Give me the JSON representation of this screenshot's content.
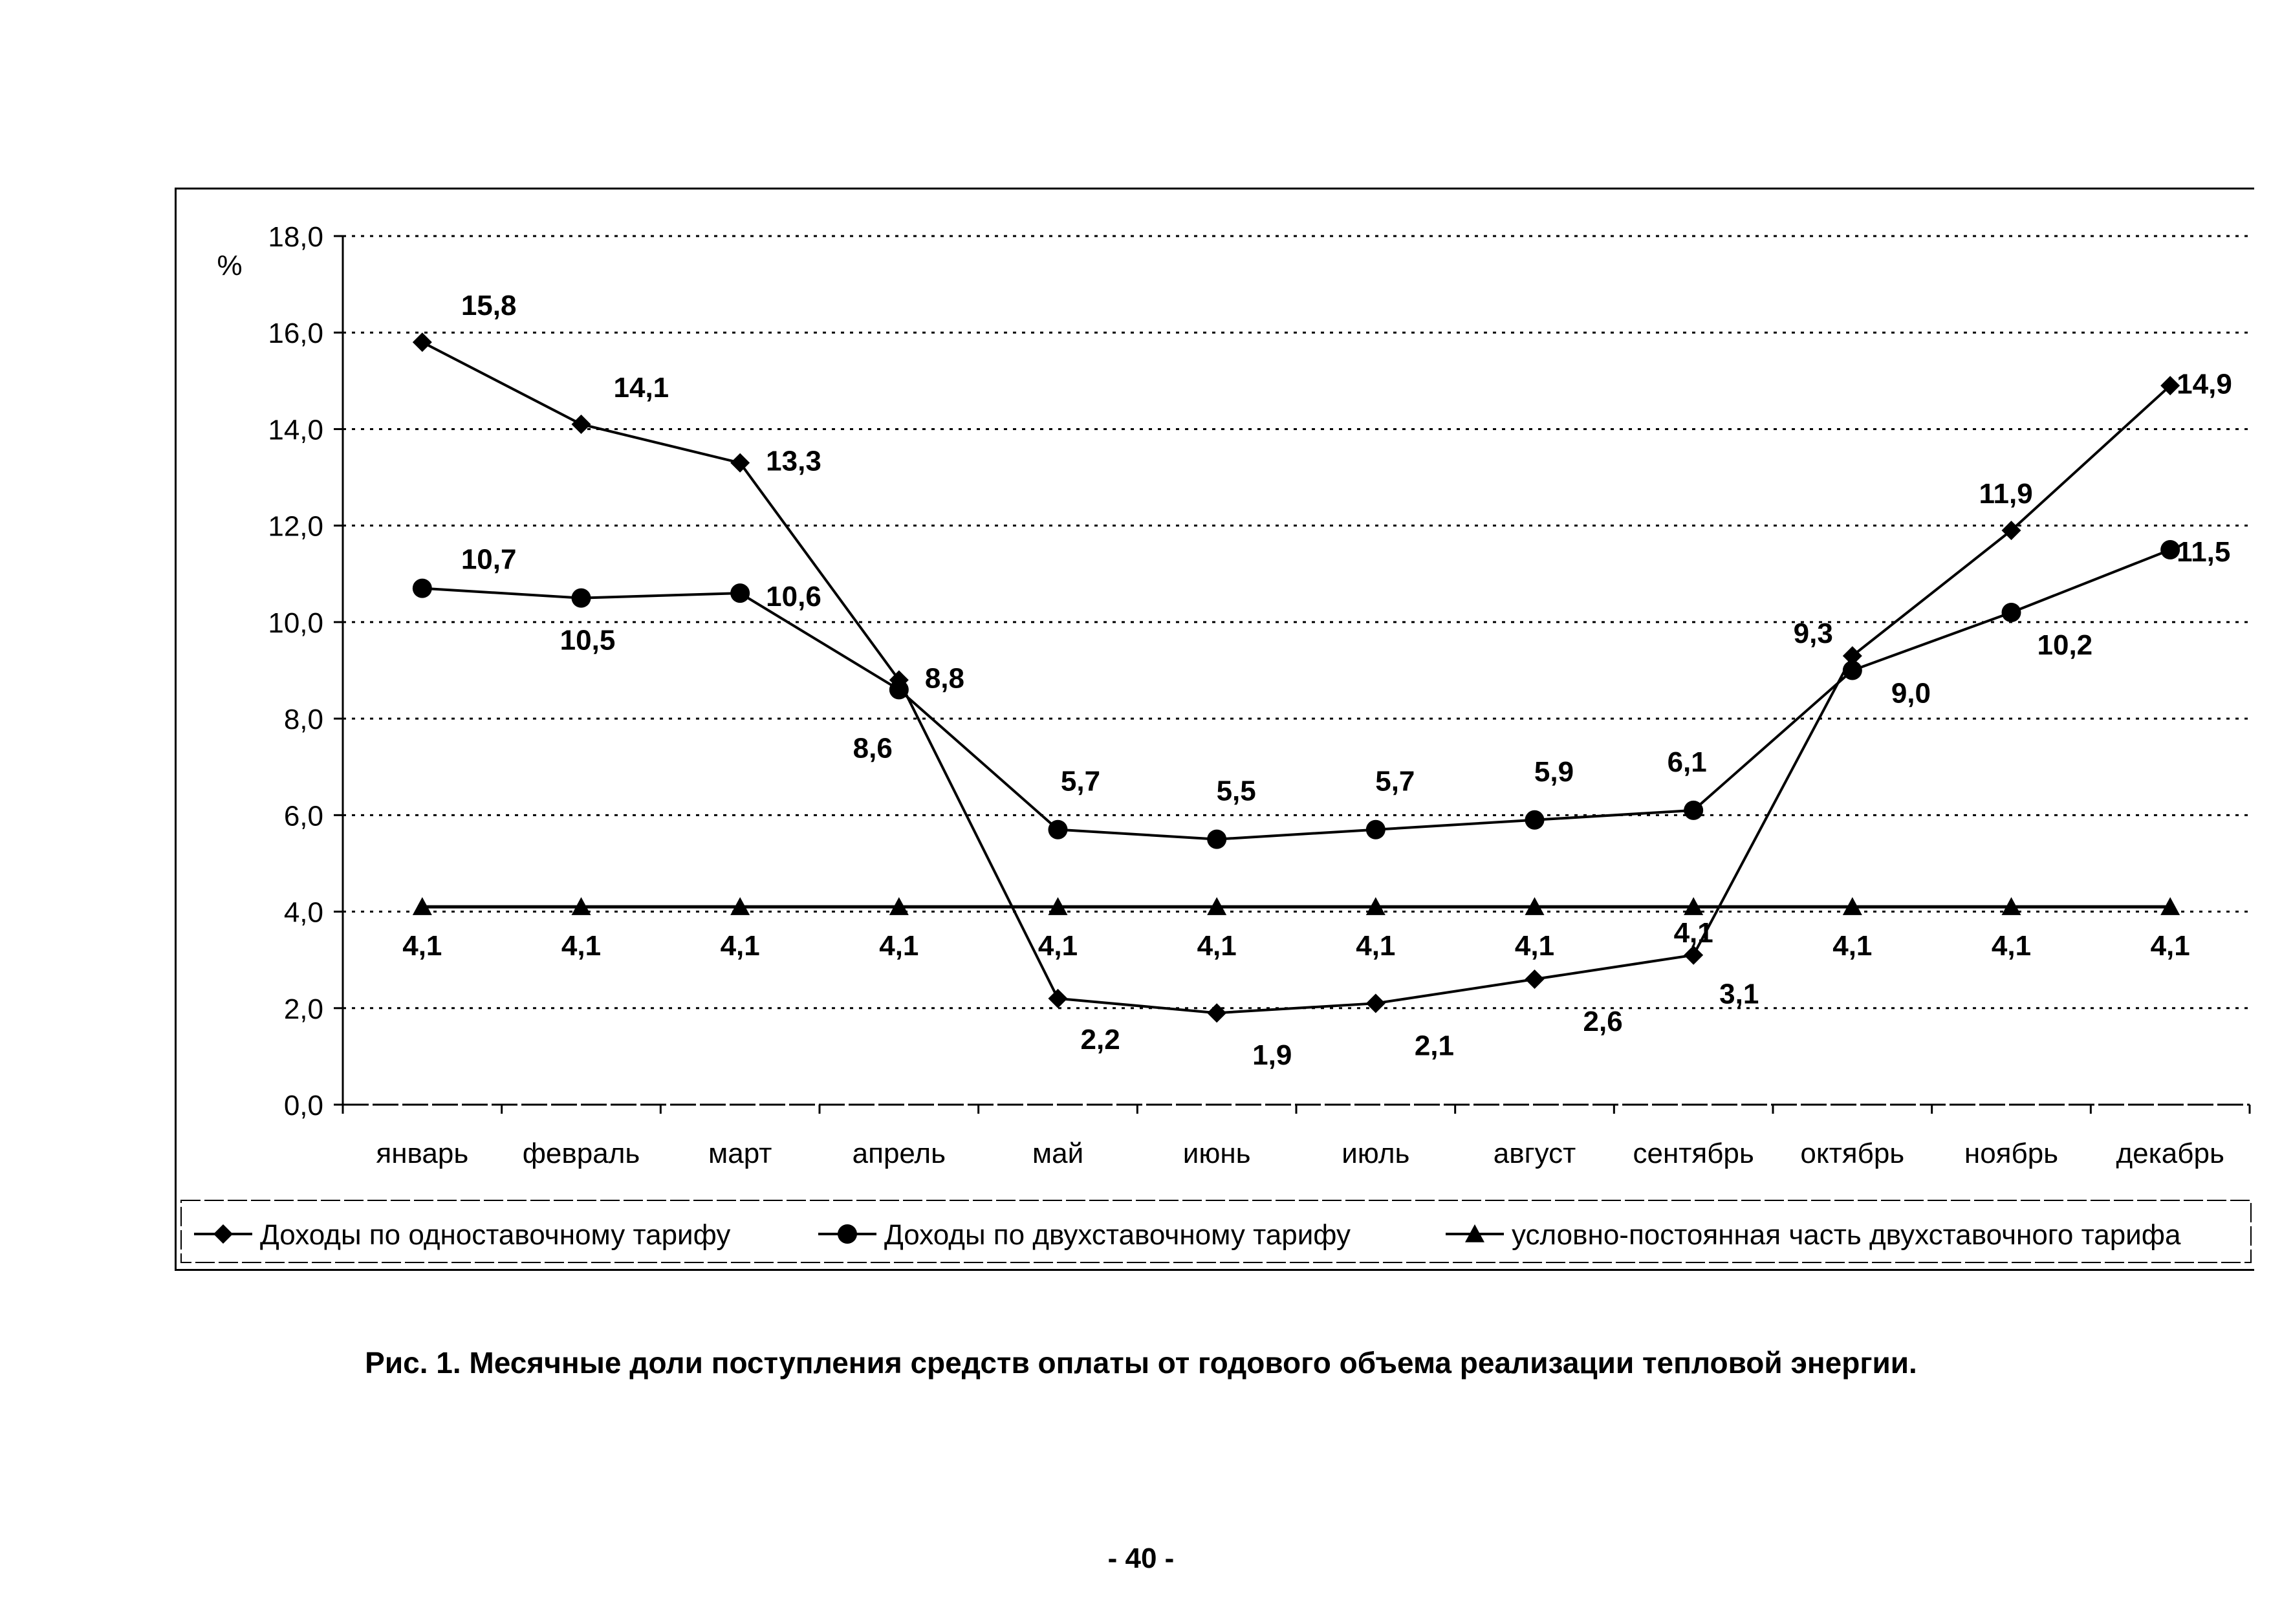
{
  "chart_data": {
    "type": "line",
    "ylabel": "%",
    "ylim": [
      0,
      18
    ],
    "yticks": [
      "0,0",
      "2,0",
      "4,0",
      "6,0",
      "8,0",
      "10,0",
      "12,0",
      "14,0",
      "16,0",
      "18,0"
    ],
    "grid": true,
    "legend_position": "bottom",
    "categories": [
      "январь",
      "февраль",
      "март",
      "апрель",
      "май",
      "июнь",
      "июль",
      "август",
      "сентябрь",
      "октябрь",
      "ноябрь",
      "декабрь"
    ],
    "series": [
      {
        "name": "Доходы по одноставочному тарифу",
        "marker": "diamond",
        "values": [
          15.8,
          14.1,
          13.3,
          8.8,
          2.2,
          1.9,
          2.1,
          2.6,
          3.1,
          9.3,
          11.9,
          14.9
        ],
        "labels": [
          "15,8",
          "14,1",
          "13,3",
          "8,8",
          "2,2",
          "1,9",
          "2,1",
          "2,6",
          "3,1",
          "9,3",
          "11,9",
          "14,9"
        ]
      },
      {
        "name": "Доходы по двухставочному тарифу",
        "marker": "circle",
        "values": [
          10.7,
          10.5,
          10.6,
          8.6,
          5.7,
          5.5,
          5.7,
          5.9,
          6.1,
          9.0,
          10.2,
          11.5
        ],
        "labels": [
          "10,7",
          "10,5",
          "10,6",
          "8,6",
          "5,7",
          "5,5",
          "5,7",
          "5,9",
          "6,1",
          "9,0",
          "10,2",
          "11,5"
        ]
      },
      {
        "name": "условно-постоянная часть двухставочного тарифа",
        "marker": "triangle",
        "values": [
          4.1,
          4.1,
          4.1,
          4.1,
          4.1,
          4.1,
          4.1,
          4.1,
          4.1,
          4.1,
          4.1,
          4.1
        ],
        "labels": [
          "4,1",
          "4,1",
          "4,1",
          "4,1",
          "4,1",
          "4,1",
          "4,1",
          "4,1",
          "4,1",
          "4,1",
          "4,1",
          "4,1"
        ]
      }
    ]
  },
  "caption": "Рис. 1. Месячные доли поступления средств оплаты от годового объема реализации тепловой энергии.",
  "page_number": "- 40 -"
}
